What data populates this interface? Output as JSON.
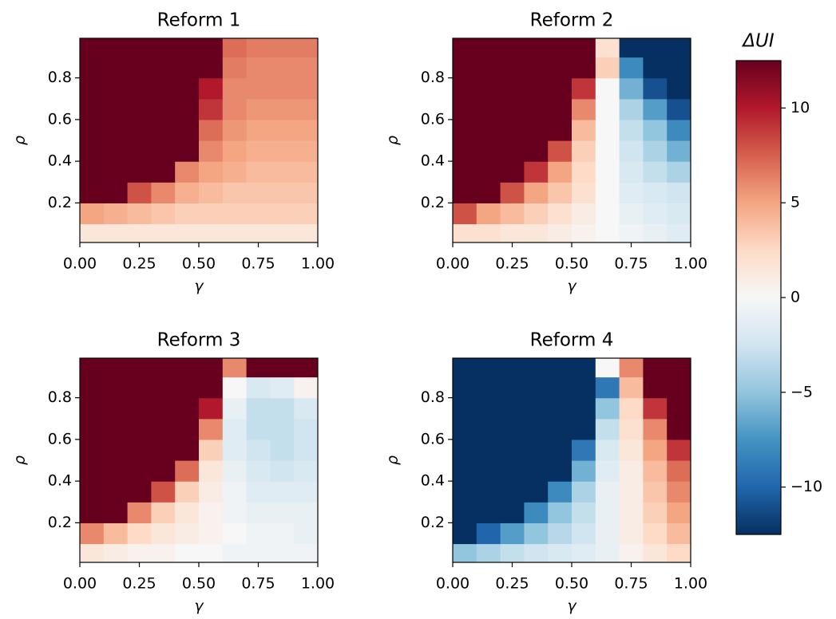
{
  "chart_data": [
    {
      "type": "heatmap",
      "title": "Reform 1",
      "xlabel": "γ",
      "ylabel": "ρ",
      "x": [
        0.05,
        0.15,
        0.25,
        0.35,
        0.45,
        0.55,
        0.65,
        0.75,
        0.85,
        0.95
      ],
      "y": [
        0.05,
        0.15,
        0.25,
        0.35,
        0.45,
        0.55,
        0.65,
        0.75,
        0.85,
        0.95
      ],
      "z": [
        [
          1.5,
          1.5,
          1.5,
          1.5,
          1.5,
          1.5,
          1.5,
          1.5,
          1.5,
          1.5
        ],
        [
          5,
          4.5,
          4,
          3.5,
          3,
          3,
          3,
          3,
          3,
          3
        ],
        [
          12.5,
          12.5,
          8,
          6,
          4.5,
          4,
          3.5,
          3.5,
          3.5,
          3.5
        ],
        [
          12.5,
          12.5,
          12.5,
          12.5,
          6,
          5,
          4.5,
          4,
          4,
          4
        ],
        [
          12.5,
          12.5,
          12.5,
          12.5,
          12.5,
          6,
          5,
          4.5,
          4.5,
          4.5
        ],
        [
          12.5,
          12.5,
          12.5,
          12.5,
          12.5,
          7,
          5.5,
          5,
          5,
          5
        ],
        [
          12.5,
          12.5,
          12.5,
          12.5,
          12.5,
          9,
          6,
          5.5,
          5.5,
          5.5
        ],
        [
          12.5,
          12.5,
          12.5,
          12.5,
          12.5,
          10,
          6,
          6,
          6,
          6
        ],
        [
          12.5,
          12.5,
          12.5,
          12.5,
          12.5,
          12.5,
          6.5,
          6,
          6,
          6
        ],
        [
          12.5,
          12.5,
          12.5,
          12.5,
          12.5,
          12.5,
          7,
          6.5,
          6.5,
          6.5
        ]
      ],
      "xlim": [
        0,
        1
      ],
      "ylim": [
        0.01,
        0.99
      ],
      "xticks": [
        {
          "value": 0,
          "label": "0.00"
        },
        {
          "value": 0.25,
          "label": "0.25"
        },
        {
          "value": 0.5,
          "label": "0.50"
        },
        {
          "value": 0.75,
          "label": "0.75"
        },
        {
          "value": 1,
          "label": "1.00"
        }
      ],
      "yticks": [
        0.2,
        0.4,
        0.6,
        0.8
      ]
    },
    {
      "type": "heatmap",
      "title": "Reform 2",
      "xlabel": "γ",
      "ylabel": "ρ",
      "x": [
        0.05,
        0.15,
        0.25,
        0.35,
        0.45,
        0.55,
        0.65,
        0.75,
        0.85,
        0.95
      ],
      "y": [
        0.05,
        0.15,
        0.25,
        0.35,
        0.45,
        0.55,
        0.65,
        0.75,
        0.85,
        0.95
      ],
      "z": [
        [
          2,
          2,
          1.5,
          1.5,
          1,
          0.5,
          0,
          -0.5,
          -1,
          -1.5
        ],
        [
          8,
          5,
          4,
          3,
          2,
          1,
          0,
          -1,
          -1.5,
          -2
        ],
        [
          12.5,
          12.5,
          8,
          5,
          3.5,
          2,
          0,
          -1.5,
          -2,
          -2.5
        ],
        [
          12.5,
          12.5,
          12.5,
          9,
          5,
          2.5,
          0,
          -2,
          -3,
          -4
        ],
        [
          12.5,
          12.5,
          12.5,
          12.5,
          8,
          3,
          0,
          -2.5,
          -4,
          -6
        ],
        [
          12.5,
          12.5,
          12.5,
          12.5,
          12.5,
          4,
          0,
          -3,
          -5,
          -8
        ],
        [
          12.5,
          12.5,
          12.5,
          12.5,
          12.5,
          6,
          0,
          -4,
          -7,
          -11
        ],
        [
          12.5,
          12.5,
          12.5,
          12.5,
          12.5,
          9,
          0,
          -6,
          -11,
          -12.5
        ],
        [
          12.5,
          12.5,
          12.5,
          12.5,
          12.5,
          12.5,
          3,
          -8,
          -12.5,
          -12.5
        ],
        [
          12.5,
          12.5,
          12.5,
          12.5,
          12.5,
          12.5,
          2,
          -12.5,
          -12.5,
          -12.5
        ]
      ],
      "xlim": [
        0,
        1
      ],
      "ylim": [
        0.01,
        0.99
      ],
      "xticks": [
        {
          "value": 0,
          "label": "0.00"
        },
        {
          "value": 0.25,
          "label": "0.25"
        },
        {
          "value": 0.5,
          "label": "0.50"
        },
        {
          "value": 0.75,
          "label": "0.75"
        },
        {
          "value": 1,
          "label": "1.00"
        }
      ],
      "yticks": [
        0.2,
        0.4,
        0.6,
        0.8
      ]
    },
    {
      "type": "heatmap",
      "title": "Reform 3",
      "xlabel": "γ",
      "ylabel": "ρ",
      "x": [
        0.05,
        0.15,
        0.25,
        0.35,
        0.45,
        0.55,
        0.65,
        0.75,
        0.85,
        0.95
      ],
      "y": [
        0.05,
        0.15,
        0.25,
        0.35,
        0.45,
        0.55,
        0.65,
        0.75,
        0.85,
        0.95
      ],
      "z": [
        [
          1.5,
          1,
          0.5,
          0.5,
          0,
          0,
          -0.5,
          -0.5,
          -0.5,
          -0.5
        ],
        [
          6,
          4,
          2.5,
          1.5,
          1,
          0.5,
          0,
          -0.5,
          -0.5,
          -1
        ],
        [
          12.5,
          12.5,
          6,
          3,
          1.5,
          0.5,
          -0.5,
          -1,
          -1,
          -1
        ],
        [
          12.5,
          12.5,
          12.5,
          8,
          3,
          1,
          -0.5,
          -1.5,
          -1.5,
          -1.5
        ],
        [
          12.5,
          12.5,
          12.5,
          12.5,
          7,
          1.5,
          -1,
          -2,
          -2.5,
          -2
        ],
        [
          12.5,
          12.5,
          12.5,
          12.5,
          12.5,
          3,
          -1.5,
          -2.5,
          -3,
          -2.5
        ],
        [
          12.5,
          12.5,
          12.5,
          12.5,
          12.5,
          6,
          -1.5,
          -3,
          -3,
          -2.5
        ],
        [
          12.5,
          12.5,
          12.5,
          12.5,
          12.5,
          10,
          -1,
          -3,
          -3,
          -2
        ],
        [
          12.5,
          12.5,
          12.5,
          12.5,
          12.5,
          12.5,
          0,
          -2,
          -1.5,
          0.5
        ],
        [
          12.5,
          12.5,
          12.5,
          12.5,
          12.5,
          12.5,
          6,
          12.5,
          12.5,
          12.5
        ]
      ],
      "xlim": [
        0,
        1
      ],
      "ylim": [
        0.01,
        0.99
      ],
      "xticks": [
        {
          "value": 0,
          "label": "0.00"
        },
        {
          "value": 0.25,
          "label": "0.25"
        },
        {
          "value": 0.5,
          "label": "0.50"
        },
        {
          "value": 0.75,
          "label": "0.75"
        },
        {
          "value": 1,
          "label": "1.00"
        }
      ],
      "yticks": [
        0.2,
        0.4,
        0.6,
        0.8
      ]
    },
    {
      "type": "heatmap",
      "title": "Reform 4",
      "xlabel": "γ",
      "ylabel": "ρ",
      "x": [
        0.05,
        0.15,
        0.25,
        0.35,
        0.45,
        0.55,
        0.65,
        0.75,
        0.85,
        0.95
      ],
      "y": [
        0.05,
        0.15,
        0.25,
        0.35,
        0.45,
        0.55,
        0.65,
        0.75,
        0.85,
        0.95
      ],
      "z": [
        [
          -5,
          -4,
          -3,
          -2.5,
          -2,
          -1.5,
          -1,
          0.5,
          1.5,
          2.5
        ],
        [
          -12.5,
          -10,
          -7,
          -5,
          -3.5,
          -2.5,
          -1,
          1,
          2.5,
          4
        ],
        [
          -12.5,
          -12.5,
          -12.5,
          -8,
          -5,
          -3,
          -1,
          1,
          3,
          5
        ],
        [
          -12.5,
          -12.5,
          -12.5,
          -12.5,
          -8,
          -4,
          -1,
          1,
          3.5,
          6
        ],
        [
          -12.5,
          -12.5,
          -12.5,
          -12.5,
          -12.5,
          -6,
          -1.5,
          1,
          4,
          7
        ],
        [
          -12.5,
          -12.5,
          -12.5,
          -12.5,
          -12.5,
          -9,
          -2,
          1.5,
          5,
          9
        ],
        [
          -12.5,
          -12.5,
          -12.5,
          -12.5,
          -12.5,
          -12.5,
          -3,
          2,
          6,
          12.5
        ],
        [
          -12.5,
          -12.5,
          -12.5,
          -12.5,
          -12.5,
          -12.5,
          -5,
          2.5,
          9,
          12.5
        ],
        [
          -12.5,
          -12.5,
          -12.5,
          -12.5,
          -12.5,
          -12.5,
          -9,
          4,
          12.5,
          12.5
        ],
        [
          -12.5,
          -12.5,
          -12.5,
          -12.5,
          -12.5,
          -12.5,
          0,
          6,
          12.5,
          12.5
        ]
      ],
      "xlim": [
        0,
        1
      ],
      "ylim": [
        0.01,
        0.99
      ],
      "xticks": [
        {
          "value": 0,
          "label": "0.00"
        },
        {
          "value": 0.25,
          "label": "0.25"
        },
        {
          "value": 0.5,
          "label": "0.50"
        },
        {
          "value": 0.75,
          "label": "0.75"
        },
        {
          "value": 1,
          "label": "1.00"
        }
      ],
      "yticks": [
        0.2,
        0.4,
        0.6,
        0.8
      ]
    }
  ],
  "colorbar": {
    "title": "ΔUI",
    "clim": [
      -12.5,
      12.5
    ],
    "ticks": [
      {
        "value": -10,
        "label": "−10"
      },
      {
        "value": -5,
        "label": "−5"
      },
      0,
      5,
      10
    ],
    "colormap": [
      "#053061",
      "#2166ac",
      "#4393c3",
      "#92c5de",
      "#d1e5f0",
      "#f7f7f7",
      "#fddbc7",
      "#f4a582",
      "#d6604d",
      "#b2182b",
      "#67001f"
    ]
  }
}
